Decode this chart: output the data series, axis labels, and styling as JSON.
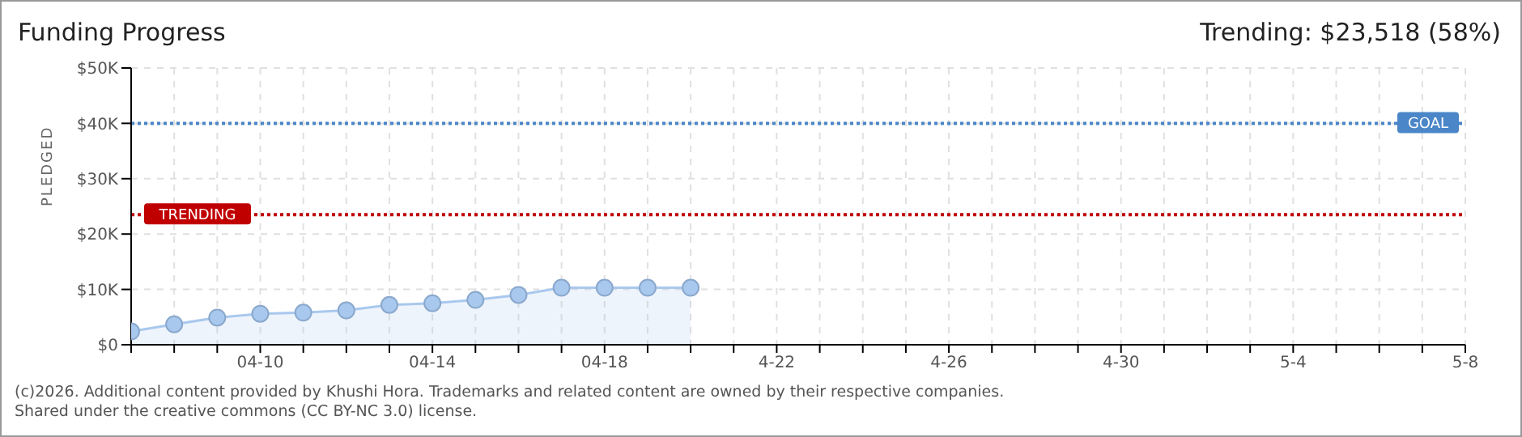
{
  "chart_data": {
    "type": "area",
    "title": "Funding Progress",
    "subtitle": "Trending: $23,518 (58%)",
    "ylabel": "PLEDGED",
    "x": [
      "--04-07",
      "--04-08",
      "--04-09",
      "--04-10",
      "--04-11",
      "--04-12",
      "--04-13",
      "--04-14",
      "--04-15",
      "--04-16",
      "--04-17",
      "--04-18",
      "--04-19",
      "--04-20"
    ],
    "series": [
      {
        "color": "#a9c8ee",
        "values": [
          2400,
          3700,
          4900,
          5600,
          5800,
          6200,
          7200,
          7500,
          8100,
          9000,
          10300,
          10300,
          10300,
          10300
        ]
      }
    ],
    "xlim": [
      "--04-07",
      "--05-08"
    ],
    "xticks": [
      {
        "value": "--04-07",
        "label": null
      },
      {
        "value": "--04-08",
        "label": null
      },
      {
        "value": "--04-09",
        "label": null
      },
      {
        "value": "--04-10",
        "label": "04-10"
      },
      {
        "value": "--04-11",
        "label": null
      },
      {
        "value": "--04-12",
        "label": null
      },
      {
        "value": "--04-13",
        "label": null
      },
      {
        "value": "--04-14",
        "label": "04-14"
      },
      {
        "value": "--04-15",
        "label": null
      },
      {
        "value": "--04-16",
        "label": null
      },
      {
        "value": "--04-17",
        "label": null
      },
      {
        "value": "--04-18",
        "label": "04-18"
      },
      {
        "value": "--04-19",
        "label": null
      },
      {
        "value": "--04-20",
        "label": null
      },
      {
        "value": "--04-21",
        "label": null
      },
      {
        "value": "--04-22",
        "label": "4-22"
      },
      {
        "value": "--04-23",
        "label": null
      },
      {
        "value": "--04-24",
        "label": null
      },
      {
        "value": "--04-25",
        "label": null
      },
      {
        "value": "--04-26",
        "label": "4-26"
      },
      {
        "value": "--04-27",
        "label": null
      },
      {
        "value": "--04-28",
        "label": null
      },
      {
        "value": "--04-29",
        "label": null
      },
      {
        "value": "--04-30",
        "label": "4-30"
      },
      {
        "value": "--05-01",
        "label": null
      },
      {
        "value": "--05-02",
        "label": null
      },
      {
        "value": "--05-03",
        "label": null
      },
      {
        "value": "--05-04",
        "label": "5-4"
      },
      {
        "value": "--05-05",
        "label": null
      },
      {
        "value": "--05-06",
        "label": null
      },
      {
        "value": "--05-07",
        "label": null
      },
      {
        "value": "--05-08",
        "label": "5-8"
      }
    ],
    "ylim": [
      0,
      50000
    ],
    "yticks": [
      {
        "value": 0,
        "label": "$0"
      },
      {
        "value": 10000,
        "label": "$10K"
      },
      {
        "value": 20000,
        "label": "$20K"
      },
      {
        "value": 30000,
        "label": "$30K"
      },
      {
        "value": 40000,
        "label": "$40K"
      },
      {
        "value": 50000,
        "label": "$50K"
      }
    ],
    "ref_lines": [
      {
        "axis": "y",
        "value": 40000,
        "label": "GOAL",
        "color": "#4a86c8",
        "line_style": "dotted"
      },
      {
        "axis": "y",
        "value": 23518,
        "label": "TRENDING",
        "color": "#c00000",
        "line_style": "dotted"
      }
    ],
    "grid": true,
    "marker": "circle",
    "annotations": [
      "(c)2026. Additional content provided by Khushi Hora. Trademarks and related content are owned by their respective companies.",
      "Shared under the creative commons (CC BY-NC 3.0) license."
    ]
  }
}
